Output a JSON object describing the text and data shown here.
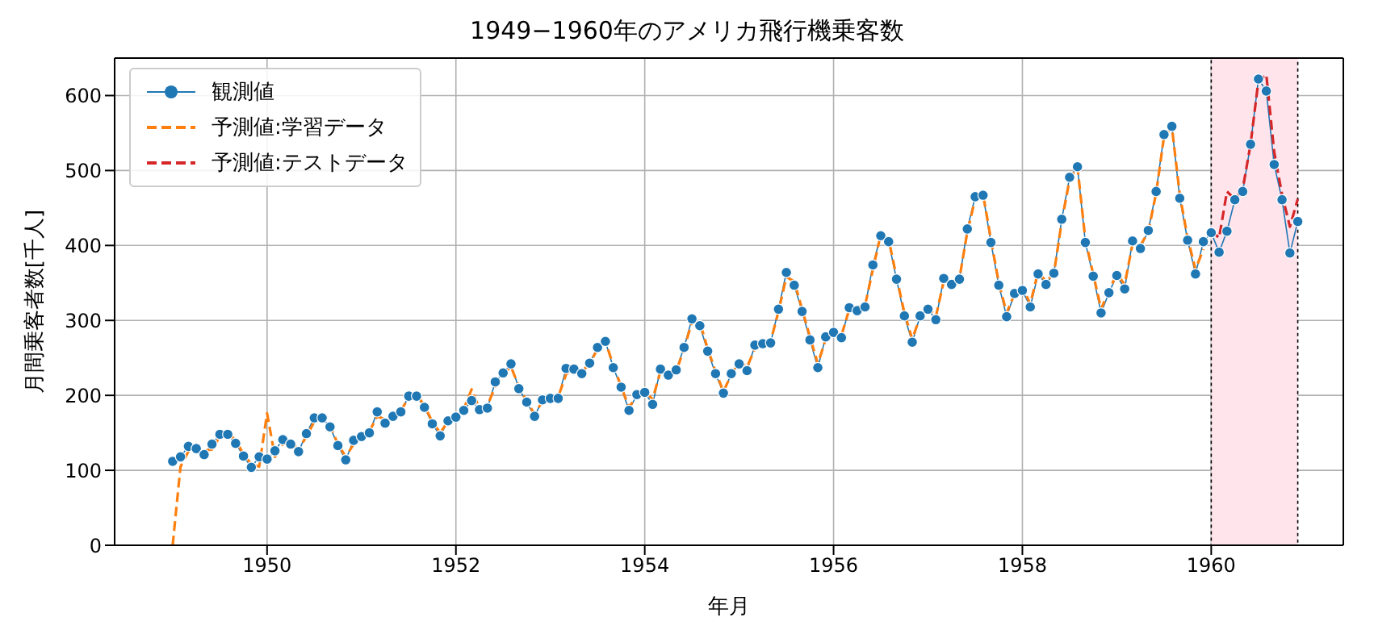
{
  "chart_data": {
    "type": "line",
    "title": "1949−1960年のアメリカ飛行機乗客数",
    "xlabel": "年月",
    "ylabel": "月間乗客者数[千人]",
    "x": [
      "1949-01",
      "1949-02",
      "1949-03",
      "1949-04",
      "1949-05",
      "1949-06",
      "1949-07",
      "1949-08",
      "1949-09",
      "1949-10",
      "1949-11",
      "1949-12",
      "1950-01",
      "1950-02",
      "1950-03",
      "1950-04",
      "1950-05",
      "1950-06",
      "1950-07",
      "1950-08",
      "1950-09",
      "1950-10",
      "1950-11",
      "1950-12",
      "1951-01",
      "1951-02",
      "1951-03",
      "1951-04",
      "1951-05",
      "1951-06",
      "1951-07",
      "1951-08",
      "1951-09",
      "1951-10",
      "1951-11",
      "1951-12",
      "1952-01",
      "1952-02",
      "1952-03",
      "1952-04",
      "1952-05",
      "1952-06",
      "1952-07",
      "1952-08",
      "1952-09",
      "1952-10",
      "1952-11",
      "1952-12",
      "1953-01",
      "1953-02",
      "1953-03",
      "1953-04",
      "1953-05",
      "1953-06",
      "1953-07",
      "1953-08",
      "1953-09",
      "1953-10",
      "1953-11",
      "1953-12",
      "1954-01",
      "1954-02",
      "1954-03",
      "1954-04",
      "1954-05",
      "1954-06",
      "1954-07",
      "1954-08",
      "1954-09",
      "1954-10",
      "1954-11",
      "1954-12",
      "1955-01",
      "1955-02",
      "1955-03",
      "1955-04",
      "1955-05",
      "1955-06",
      "1955-07",
      "1955-08",
      "1955-09",
      "1955-10",
      "1955-11",
      "1955-12",
      "1956-01",
      "1956-02",
      "1956-03",
      "1956-04",
      "1956-05",
      "1956-06",
      "1956-07",
      "1956-08",
      "1956-09",
      "1956-10",
      "1956-11",
      "1956-12",
      "1957-01",
      "1957-02",
      "1957-03",
      "1957-04",
      "1957-05",
      "1957-06",
      "1957-07",
      "1957-08",
      "1957-09",
      "1957-10",
      "1957-11",
      "1957-12",
      "1958-01",
      "1958-02",
      "1958-03",
      "1958-04",
      "1958-05",
      "1958-06",
      "1958-07",
      "1958-08",
      "1958-09",
      "1958-10",
      "1958-11",
      "1958-12",
      "1959-01",
      "1959-02",
      "1959-03",
      "1959-04",
      "1959-05",
      "1959-06",
      "1959-07",
      "1959-08",
      "1959-09",
      "1959-10",
      "1959-11",
      "1959-12",
      "1960-01",
      "1960-02",
      "1960-03",
      "1960-04",
      "1960-05",
      "1960-06",
      "1960-07",
      "1960-08",
      "1960-09",
      "1960-10",
      "1960-11",
      "1960-12"
    ],
    "series": [
      {
        "name": "観測値",
        "color": "#1f77b4",
        "marker": "circle",
        "line_style": "solid",
        "values": [
          112,
          118,
          132,
          129,
          121,
          135,
          148,
          148,
          136,
          119,
          104,
          118,
          115,
          126,
          141,
          135,
          125,
          149,
          170,
          170,
          158,
          133,
          114,
          140,
          145,
          150,
          178,
          163,
          172,
          178,
          199,
          199,
          184,
          162,
          146,
          166,
          171,
          180,
          193,
          181,
          183,
          218,
          230,
          242,
          209,
          191,
          172,
          194,
          196,
          196,
          236,
          235,
          229,
          243,
          264,
          272,
          237,
          211,
          180,
          201,
          204,
          188,
          235,
          227,
          234,
          264,
          302,
          293,
          259,
          229,
          203,
          229,
          242,
          233,
          267,
          269,
          270,
          315,
          364,
          347,
          312,
          274,
          237,
          278,
          284,
          277,
          317,
          313,
          318,
          374,
          413,
          405,
          355,
          306,
          271,
          306,
          315,
          301,
          356,
          348,
          355,
          422,
          465,
          467,
          404,
          347,
          305,
          336,
          340,
          318,
          362,
          348,
          363,
          435,
          491,
          505,
          404,
          359,
          310,
          337,
          360,
          342,
          406,
          396,
          420,
          472,
          548,
          559,
          463,
          407,
          362,
          405,
          417,
          391,
          419,
          461,
          472,
          535,
          622,
          606,
          508,
          461,
          390,
          432
        ]
      },
      {
        "name": "予測値:学習データ",
        "color": "#ff7f0e",
        "marker": "none",
        "line_style": "dashed",
        "values": [
          0,
          105,
          125,
          132,
          126,
          128,
          145,
          150,
          140,
          122,
          108,
          105,
          176,
          118,
          135,
          138,
          128,
          145,
          165,
          172,
          160,
          135,
          118,
          135,
          148,
          152,
          172,
          168,
          170,
          180,
          196,
          202,
          186,
          165,
          150,
          165,
          175,
          182,
          208,
          182,
          186,
          212,
          228,
          238,
          212,
          192,
          175,
          192,
          200,
          198,
          228,
          238,
          232,
          242,
          262,
          272,
          240,
          212,
          184,
          200,
          205,
          195,
          232,
          230,
          232,
          262,
          298,
          298,
          262,
          232,
          205,
          228,
          245,
          238,
          262,
          272,
          272,
          312,
          358,
          352,
          315,
          278,
          242,
          275,
          288,
          280,
          315,
          318,
          320,
          368,
          415,
          408,
          358,
          310,
          275,
          305,
          318,
          305,
          352,
          352,
          356,
          418,
          462,
          468,
          408,
          350,
          310,
          335,
          345,
          322,
          365,
          352,
          362,
          432,
          488,
          505,
          408,
          362,
          315,
          340,
          362,
          348,
          402,
          400,
          418,
          470,
          545,
          558,
          468,
          410,
          368,
          395,
          null,
          null,
          null,
          null,
          null,
          null,
          null,
          null,
          null,
          null,
          null,
          null
        ]
      },
      {
        "name": "予測値:テストデータ",
        "color": "#d62728",
        "marker": "none",
        "line_style": "dashed",
        "values": [
          null,
          null,
          null,
          null,
          null,
          null,
          null,
          null,
          null,
          null,
          null,
          null,
          null,
          null,
          null,
          null,
          null,
          null,
          null,
          null,
          null,
          null,
          null,
          null,
          null,
          null,
          null,
          null,
          null,
          null,
          null,
          null,
          null,
          null,
          null,
          null,
          null,
          null,
          null,
          null,
          null,
          null,
          null,
          null,
          null,
          null,
          null,
          null,
          null,
          null,
          null,
          null,
          null,
          null,
          null,
          null,
          null,
          null,
          null,
          null,
          null,
          null,
          null,
          null,
          null,
          null,
          null,
          null,
          null,
          null,
          null,
          null,
          null,
          null,
          null,
          null,
          null,
          null,
          null,
          null,
          null,
          null,
          null,
          null,
          null,
          null,
          null,
          null,
          null,
          null,
          null,
          null,
          null,
          null,
          null,
          null,
          null,
          null,
          null,
          null,
          null,
          null,
          null,
          null,
          null,
          null,
          null,
          null,
          null,
          null,
          null,
          null,
          null,
          null,
          null,
          null,
          null,
          null,
          null,
          null,
          null,
          null,
          null,
          null,
          null,
          null,
          null,
          null,
          null,
          null,
          null,
          null,
          420,
          410,
          472,
          462,
          475,
          535,
          620,
          628,
          525,
          468,
          425,
          462
        ]
      }
    ],
    "xlim": [
      "1948-05-20",
      "1961-05-25"
    ],
    "xticks": [
      {
        "value": "1950",
        "label": "1950"
      },
      {
        "value": "1952",
        "label": "1952"
      },
      {
        "value": "1954",
        "label": "1954"
      },
      {
        "value": "1956",
        "label": "1956"
      },
      {
        "value": "1958",
        "label": "1958"
      },
      {
        "value": "1960",
        "label": "1960"
      }
    ],
    "ylim": [
      0,
      650
    ],
    "yticks": [
      0,
      100,
      200,
      300,
      400,
      500,
      600
    ],
    "bands": [
      {
        "axis": "x",
        "from": "1960-01",
        "to": "1960-12",
        "color": "#ffe4ec"
      }
    ],
    "grid": true,
    "legend": "top left"
  }
}
